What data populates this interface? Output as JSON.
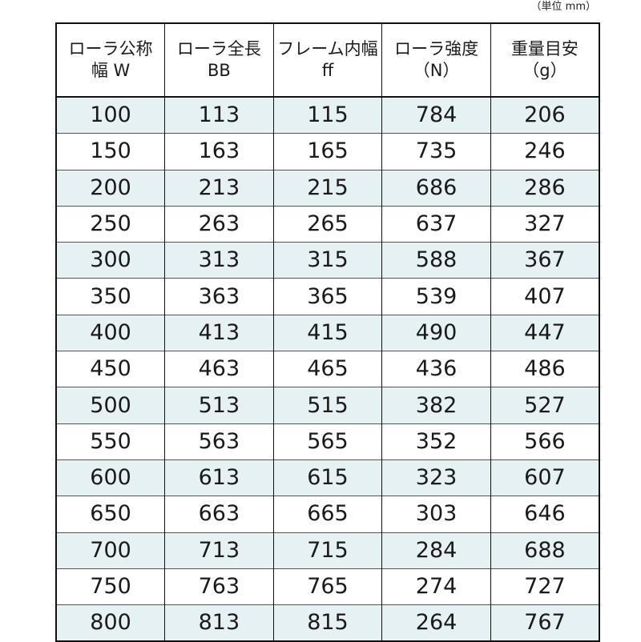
{
  "unit_note": "（単位 mm）",
  "columns": [
    {
      "line1": "ローラ公称",
      "line2": "幅 W"
    },
    {
      "line1": "ローラ全長",
      "line2": "BB"
    },
    {
      "line1": "フレーム内幅",
      "line2": "ff"
    },
    {
      "line1": "ローラ強度",
      "line2": "（N）"
    },
    {
      "line1": "重量目安",
      "line2": "（g）"
    }
  ],
  "rows": [
    [
      "100",
      "113",
      "115",
      "784",
      "206"
    ],
    [
      "150",
      "163",
      "165",
      "735",
      "246"
    ],
    [
      "200",
      "213",
      "215",
      "686",
      "286"
    ],
    [
      "250",
      "263",
      "265",
      "637",
      "327"
    ],
    [
      "300",
      "313",
      "315",
      "588",
      "367"
    ],
    [
      "350",
      "363",
      "365",
      "539",
      "407"
    ],
    [
      "400",
      "413",
      "415",
      "490",
      "447"
    ],
    [
      "450",
      "463",
      "465",
      "436",
      "486"
    ],
    [
      "500",
      "513",
      "515",
      "382",
      "527"
    ],
    [
      "550",
      "563",
      "565",
      "352",
      "566"
    ],
    [
      "600",
      "613",
      "615",
      "323",
      "607"
    ],
    [
      "650",
      "663",
      "665",
      "303",
      "646"
    ],
    [
      "700",
      "713",
      "715",
      "284",
      "688"
    ],
    [
      "750",
      "763",
      "765",
      "274",
      "727"
    ],
    [
      "800",
      "813",
      "815",
      "264",
      "767"
    ]
  ],
  "colors": {
    "stripe": "#e5f1f3",
    "border": "#111111"
  }
}
